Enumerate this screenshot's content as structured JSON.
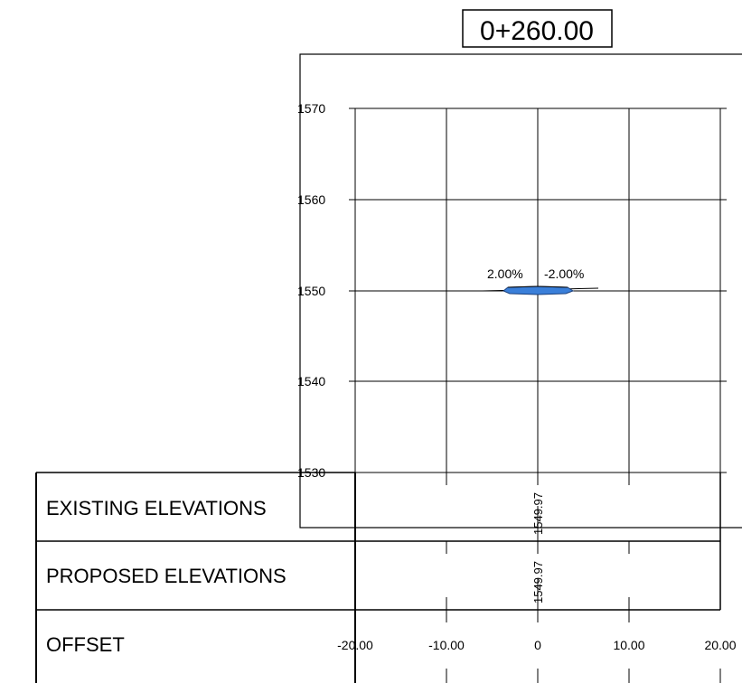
{
  "station": {
    "label": "0+260.00"
  },
  "y_axis": {
    "ticks": [
      "1570",
      "1560",
      "1550",
      "1540",
      "1530"
    ]
  },
  "x_axis": {
    "ticks": [
      "-20.00",
      "-10.00",
      "0",
      "10.00",
      "20.00"
    ]
  },
  "rows": {
    "existing": {
      "label": "EXISTING ELEVATIONS",
      "value": "1549.97"
    },
    "proposed": {
      "label": "PROPOSED ELEVATIONS",
      "value": "1549.97"
    },
    "offset": {
      "label": "OFFSET"
    }
  },
  "slopes": {
    "left": "2.00%",
    "right": "-2.00%"
  },
  "colors": {
    "road_fill": "#3a7fd9",
    "line": "#000000"
  }
}
